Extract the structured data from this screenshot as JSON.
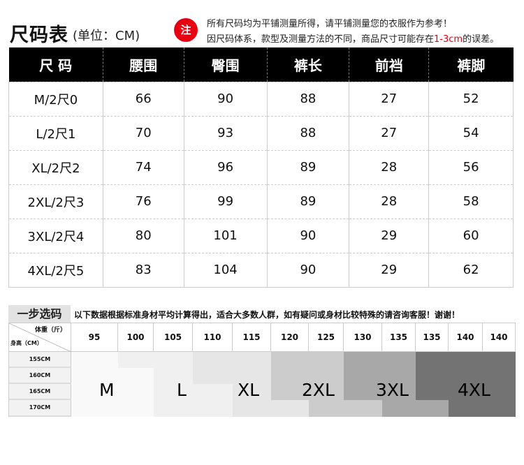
{
  "header": {
    "title": "尺码表",
    "unit": "(单位：CM)",
    "note_badge": "注",
    "note_line1": "所有尺码均为平铺测量所得，请平铺测量您的衣服作为参考！",
    "note_line2_a": "因尺码体系，款型及测量方法的不同，商品尺寸可能存在",
    "note_line2_red": "1-3cm",
    "note_line2_b": "的误差。",
    "accent": "#e60012"
  },
  "size_table": {
    "columns": [
      "尺 码",
      "腰围",
      "臀围",
      "裤长",
      "前裆",
      "裤脚"
    ],
    "rows": [
      [
        "M/2尺0",
        "66",
        "90",
        "88",
        "27",
        "52"
      ],
      [
        "L/2尺1",
        "70",
        "93",
        "88",
        "27",
        "54"
      ],
      [
        "XL/2尺2",
        "74",
        "96",
        "89",
        "28",
        "56"
      ],
      [
        "2XL/2尺3",
        "76",
        "99",
        "89",
        "28",
        "58"
      ],
      [
        "3XL/2尺4",
        "80",
        "101",
        "90",
        "29",
        "60"
      ],
      [
        "4XL/2尺5",
        "83",
        "104",
        "90",
        "29",
        "62"
      ]
    ]
  },
  "selector": {
    "title": "一步选码",
    "description": "以下数据根据标准身材平均计算得出，适合大多数人群，如有疑问或身材比较特殊的请咨询客服！谢谢！",
    "weight_label": "体重（斤）",
    "height_label": "身高（CM）",
    "weights": [
      "95",
      "100",
      "105",
      "110",
      "115",
      "120",
      "125",
      "130",
      "135",
      "135",
      "140",
      "140"
    ],
    "heights": [
      "155CM",
      "160CM",
      "165CM",
      "170CM"
    ],
    "sizes": [
      "M",
      "L",
      "XL",
      "2XL",
      "3XL",
      "4XL"
    ],
    "size_colors": [
      "#f9f9f9",
      "#f0f0f0",
      "#e6e6e6",
      "#cccccc",
      "#a8a8a8",
      "#737373"
    ],
    "matrix": [
      [
        "M",
        "L",
        "L",
        "XL",
        "XL",
        "2XL",
        "2XL",
        "3XL",
        "3XL",
        "4XL",
        "4XL",
        "4XL"
      ],
      [
        "M",
        "M",
        "L",
        "XL",
        "XL",
        "2XL",
        "2XL",
        "3XL",
        "3XL",
        "4XL",
        "4XL",
        "4XL"
      ],
      [
        "M",
        "M",
        "L",
        "L",
        "XL",
        "2XL",
        "2XL",
        "3XL",
        "3XL",
        "4XL",
        "4XL",
        "4XL"
      ],
      [
        "M",
        "M",
        "L",
        "L",
        "XL",
        "XL",
        "2XL",
        "2XL",
        "3XL",
        "3XL",
        "4XL",
        "4XL"
      ]
    ]
  }
}
